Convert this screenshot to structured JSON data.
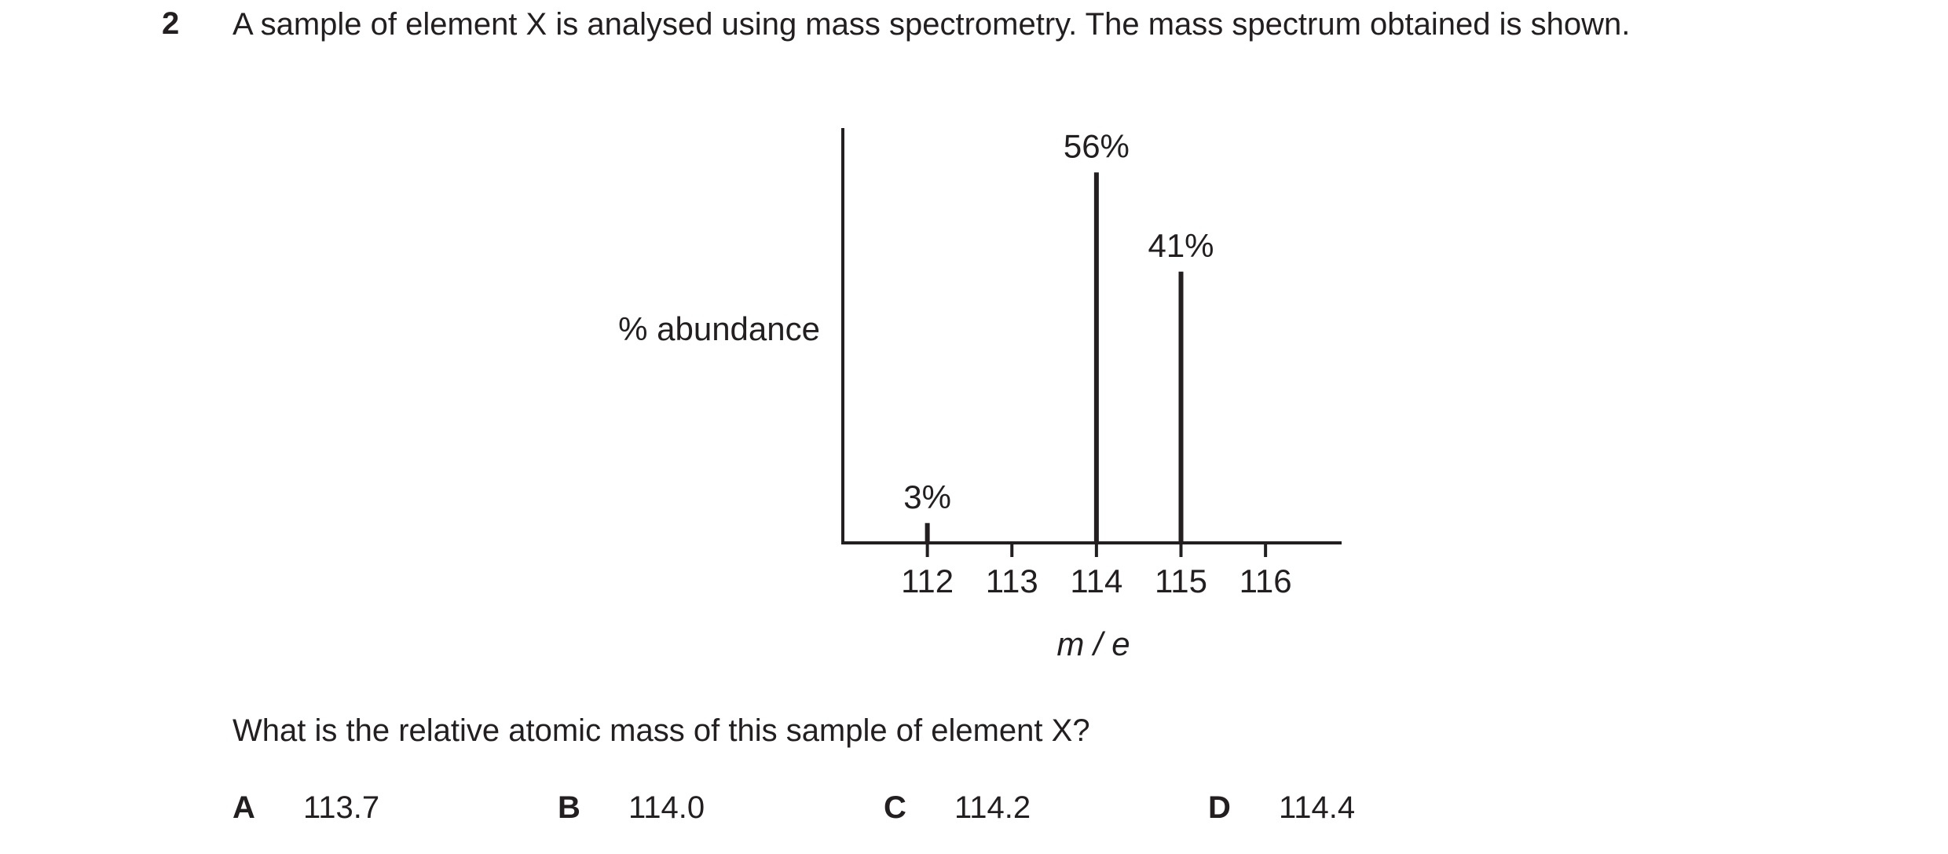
{
  "question": {
    "number": "2",
    "text": "A sample of element X is analysed using mass spectrometry. The mass spectrum obtained is shown."
  },
  "chart_data": {
    "type": "bar",
    "x": [
      112,
      114,
      115
    ],
    "values": [
      3,
      56,
      41
    ],
    "value_labels": [
      "3%",
      "56%",
      "41%"
    ],
    "color": "#231f20",
    "xlim": [
      111,
      116.9
    ],
    "xticks": [
      112,
      113,
      114,
      115,
      116
    ],
    "ylim": [
      0,
      62.7
    ],
    "ylabel": "% abundance",
    "xlabel": "m / e"
  },
  "prompt": "What is the relative atomic mass of this sample of element X?",
  "options": [
    {
      "letter": "A",
      "value": "113.7"
    },
    {
      "letter": "B",
      "value": "114.0"
    },
    {
      "letter": "C",
      "value": "114.2"
    },
    {
      "letter": "D",
      "value": "114.4"
    }
  ]
}
